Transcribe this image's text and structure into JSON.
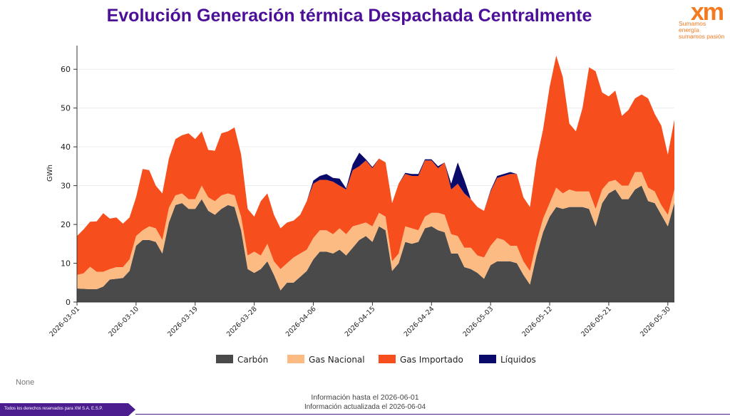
{
  "header": {
    "title": "Evolución Generación térmica Despachada Centralmente"
  },
  "logo": {
    "mark": "xm",
    "tagline_1": "Sumamos energía",
    "tagline_2": "sumamos pasión",
    "color": "#f47a20"
  },
  "note": "None",
  "info": {
    "line1": "Información hasta el 2026-06-01",
    "line2": "Información actualizada el 2026-06-04"
  },
  "footer": {
    "rights": "Todos los derechos reservados para XM S.A. E.S.P."
  },
  "chart_data": {
    "type": "area",
    "stacked": true,
    "ylabel": "GWh",
    "xlabel": "",
    "ylim": [
      0,
      65
    ],
    "yticks": [
      0,
      10,
      20,
      30,
      40,
      50,
      60
    ],
    "grid": true,
    "legend_position": "bottom",
    "x_start": "2026-03-01",
    "x": [
      "2026-03-01",
      "2026-03-02",
      "2026-03-03",
      "2026-03-04",
      "2026-03-05",
      "2026-03-06",
      "2026-03-07",
      "2026-03-08",
      "2026-03-09",
      "2026-03-10",
      "2026-03-11",
      "2026-03-12",
      "2026-03-13",
      "2026-03-14",
      "2026-03-15",
      "2026-03-16",
      "2026-03-17",
      "2026-03-18",
      "2026-03-19",
      "2026-03-20",
      "2026-03-21",
      "2026-03-22",
      "2026-03-23",
      "2026-03-24",
      "2026-03-25",
      "2026-03-26",
      "2026-03-27",
      "2026-03-28",
      "2026-03-29",
      "2026-03-30",
      "2026-03-31",
      "2026-04-01",
      "2026-04-02",
      "2026-04-03",
      "2026-04-04",
      "2026-04-05",
      "2026-04-06",
      "2026-04-07",
      "2026-04-08",
      "2026-04-09",
      "2026-04-10",
      "2026-04-11",
      "2026-04-12",
      "2026-04-13",
      "2026-04-14",
      "2026-04-15",
      "2026-04-16",
      "2026-04-17",
      "2026-04-18",
      "2026-04-19",
      "2026-04-20",
      "2026-04-21",
      "2026-04-22",
      "2026-04-23",
      "2026-04-24",
      "2026-04-25",
      "2026-04-26",
      "2026-04-27",
      "2026-04-28",
      "2026-04-29",
      "2026-04-30",
      "2026-05-01",
      "2026-05-02",
      "2026-05-03",
      "2026-05-04",
      "2026-05-05",
      "2026-05-06",
      "2026-05-07",
      "2026-05-08",
      "2026-05-09",
      "2026-05-10",
      "2026-05-11",
      "2026-05-12",
      "2026-05-13",
      "2026-05-14",
      "2026-05-15",
      "2026-05-16",
      "2026-05-17",
      "2026-05-18",
      "2026-05-19",
      "2026-05-20",
      "2026-05-21",
      "2026-05-22",
      "2026-05-23",
      "2026-05-24",
      "2026-05-25",
      "2026-05-26",
      "2026-05-27",
      "2026-05-28",
      "2026-05-29",
      "2026-05-30",
      "2026-05-31"
    ],
    "xtick_labels": [
      "2026-03-01",
      "2026-03-10",
      "2026-03-19",
      "2026-03-28",
      "2026-04-06",
      "2026-04-15",
      "2026-04-24",
      "2026-05-03",
      "2026-05-12",
      "2026-05-21",
      "2026-05-30"
    ],
    "series": [
      {
        "name": "Carbón",
        "color": "#4a4a4a",
        "values": [
          3.5,
          3.4,
          3.3,
          3.3,
          4.0,
          5.8,
          6.0,
          6.2,
          8.0,
          14.5,
          16.0,
          16.0,
          15.5,
          12.5,
          20.5,
          25.0,
          25.5,
          24.0,
          24.0,
          26.5,
          23.5,
          22.5,
          24.0,
          25.0,
          24.5,
          18.5,
          8.5,
          7.5,
          8.5,
          10.5,
          7.0,
          3.0,
          5.0,
          5.0,
          6.5,
          8.0,
          11.0,
          13.0,
          13.0,
          12.5,
          13.5,
          12.0,
          14.0,
          16.0,
          17.0,
          15.5,
          19.5,
          18.5,
          8.0,
          10.0,
          15.5,
          15.0,
          15.5,
          19.0,
          19.5,
          18.5,
          18.0,
          12.5,
          12.5,
          9.0,
          8.5,
          7.5,
          6.0,
          9.5,
          10.5,
          10.5,
          10.5,
          10.0,
          7.0,
          4.5,
          12.0,
          18.0,
          22.0,
          24.5,
          24.0,
          24.5,
          24.5,
          24.5,
          24.0,
          19.5,
          25.5,
          28.0,
          29.0,
          26.5,
          26.5,
          29.0,
          30.0,
          26.0,
          25.5,
          22.5,
          19.5,
          25.5
        ]
      },
      {
        "name": "Gas Nacional",
        "color": "#fdbb84",
        "values": [
          3.5,
          4.0,
          5.8,
          4.5,
          3.8,
          2.7,
          3.0,
          2.8,
          3.0,
          2.5,
          2.5,
          3.5,
          3.5,
          3.5,
          3.8,
          2.5,
          2.5,
          2.5,
          2.5,
          3.5,
          3.5,
          3.5,
          3.5,
          3.0,
          3.0,
          3.5,
          3.5,
          5.5,
          3.5,
          4.5,
          3.5,
          5.5,
          5.0,
          6.5,
          6.0,
          5.5,
          5.5,
          5.5,
          5.5,
          5.0,
          5.5,
          5.5,
          5.5,
          4.0,
          3.5,
          4.0,
          3.5,
          3.5,
          2.5,
          2.5,
          4.0,
          4.0,
          3.0,
          3.0,
          3.5,
          4.5,
          4.5,
          5.0,
          4.5,
          5.0,
          5.5,
          4.5,
          5.5,
          5.0,
          6.0,
          5.5,
          4.0,
          4.5,
          3.5,
          3.5,
          3.5,
          3.5,
          3.5,
          5.0,
          4.0,
          4.5,
          4.0,
          4.0,
          4.5,
          4.5,
          3.5,
          3.0,
          2.5,
          3.5,
          3.5,
          4.5,
          3.5,
          3.5,
          3.0,
          2.5,
          3.0,
          3.5
        ]
      },
      {
        "name": "Gas Importado",
        "color": "#f74e1e",
        "values": [
          10.0,
          11.3,
          11.6,
          13.0,
          15.1,
          13.0,
          12.8,
          11.2,
          10.8,
          10.0,
          15.8,
          14.5,
          11.0,
          12.0,
          12.7,
          14.5,
          15.0,
          17.0,
          15.5,
          14.0,
          12.2,
          13.0,
          16.0,
          16.0,
          17.5,
          16.0,
          12.0,
          9.0,
          14.0,
          13.0,
          12.0,
          10.5,
          10.5,
          9.5,
          10.0,
          12.5,
          14.0,
          13.0,
          13.0,
          13.5,
          11.0,
          11.5,
          14.5,
          15.0,
          16.0,
          15.0,
          14.0,
          14.0,
          15.0,
          18.0,
          13.5,
          13.5,
          14.0,
          14.5,
          13.5,
          11.5,
          13.5,
          11.5,
          13.5,
          14.0,
          12.5,
          12.5,
          12.0,
          14.0,
          15.5,
          16.5,
          18.5,
          18.5,
          16.5,
          16.5,
          21.0,
          23.0,
          30.0,
          34.0,
          30.0,
          17.0,
          15.5,
          21.5,
          32.0,
          35.5,
          25.0,
          22.0,
          23.0,
          18.0,
          19.5,
          19.0,
          20.0,
          23.0,
          20.0,
          20.5,
          15.5,
          18.0
        ]
      },
      {
        "name": "Líquidos",
        "color": "#0a0a6b",
        "values": [
          0,
          0,
          0,
          0,
          0,
          0,
          0,
          0,
          0,
          0,
          0,
          0,
          0,
          0,
          0,
          0,
          0,
          0,
          0,
          0,
          0,
          0,
          0,
          0,
          0,
          0,
          0,
          0,
          0,
          0,
          0,
          0,
          0,
          0,
          0,
          0,
          0.8,
          1.0,
          1.5,
          1.0,
          1.8,
          0.3,
          1.5,
          3.5,
          0.3,
          0.3,
          0,
          0,
          0,
          0,
          0.3,
          0.5,
          0.5,
          0.3,
          0.3,
          0.5,
          0,
          1.5,
          5.5,
          3.5,
          0,
          0,
          0,
          0.3,
          0.5,
          0.5,
          0.5,
          0,
          0,
          0,
          0,
          0,
          0,
          0,
          0,
          0,
          0,
          0,
          0,
          0,
          0,
          0,
          0,
          0,
          0,
          0,
          0,
          0,
          0,
          0,
          0,
          0
        ]
      }
    ]
  }
}
